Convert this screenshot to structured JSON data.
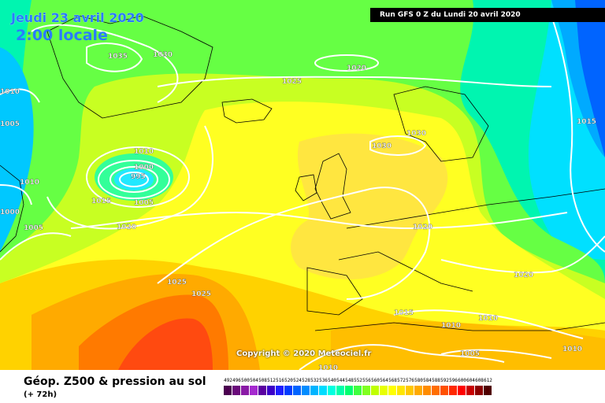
{
  "header": {
    "date": "Jeudi 23 avril 2020",
    "local_time": "2:00 locale",
    "run": "Run GFS 0 Z du Lundi 20 avril 2020"
  },
  "copyright": "Copyright © 2020 Meteociel.fr",
  "legend": {
    "title": "Géop. Z500 & pression au sol",
    "subtitle": "(+ 72h)",
    "scale_values": [
      "492",
      "496",
      "500",
      "504",
      "508",
      "512",
      "516",
      "520",
      "524",
      "528",
      "532",
      "536",
      "540",
      "544",
      "548",
      "552",
      "556",
      "560",
      "564",
      "568",
      "572",
      "576",
      "580",
      "584",
      "588",
      "592",
      "596",
      "600",
      "604",
      "608",
      "612"
    ],
    "scale_colors": [
      "#4b0050",
      "#6a0a7a",
      "#8a1aa6",
      "#a52acf",
      "#5a00a0",
      "#3c00c8",
      "#1e1eff",
      "#003cff",
      "#0064ff",
      "#008cff",
      "#00b4ff",
      "#00dcff",
      "#00ffe0",
      "#00ffaa",
      "#00ff70",
      "#40ff40",
      "#80ff20",
      "#c0ff00",
      "#e8ff00",
      "#ffff00",
      "#ffe600",
      "#ffc800",
      "#ffaa00",
      "#ff8c00",
      "#ff6e00",
      "#ff5000",
      "#ff2800",
      "#ff0000",
      "#c80000",
      "#8c0000",
      "#500000"
    ]
  },
  "isobars": [
    {
      "label": "1035"
    },
    {
      "label": "1030"
    },
    {
      "label": "1020"
    },
    {
      "label": "1025"
    },
    {
      "label": "1010"
    },
    {
      "label": "1005"
    },
    {
      "label": "1010"
    },
    {
      "label": "1000"
    },
    {
      "label": "995"
    },
    {
      "label": "1005"
    },
    {
      "label": "1015"
    },
    {
      "label": "1010"
    },
    {
      "label": "1000"
    },
    {
      "label": "1005"
    },
    {
      "label": "1020"
    },
    {
      "label": "1025"
    },
    {
      "label": "1025"
    },
    {
      "label": "1030"
    },
    {
      "label": "1030"
    },
    {
      "label": "1020"
    },
    {
      "label": "1015"
    },
    {
      "label": "1010"
    },
    {
      "label": "1020"
    },
    {
      "label": "1010"
    },
    {
      "label": "1015"
    },
    {
      "label": "1005"
    },
    {
      "label": "1010"
    },
    {
      "label": "1010"
    }
  ]
}
